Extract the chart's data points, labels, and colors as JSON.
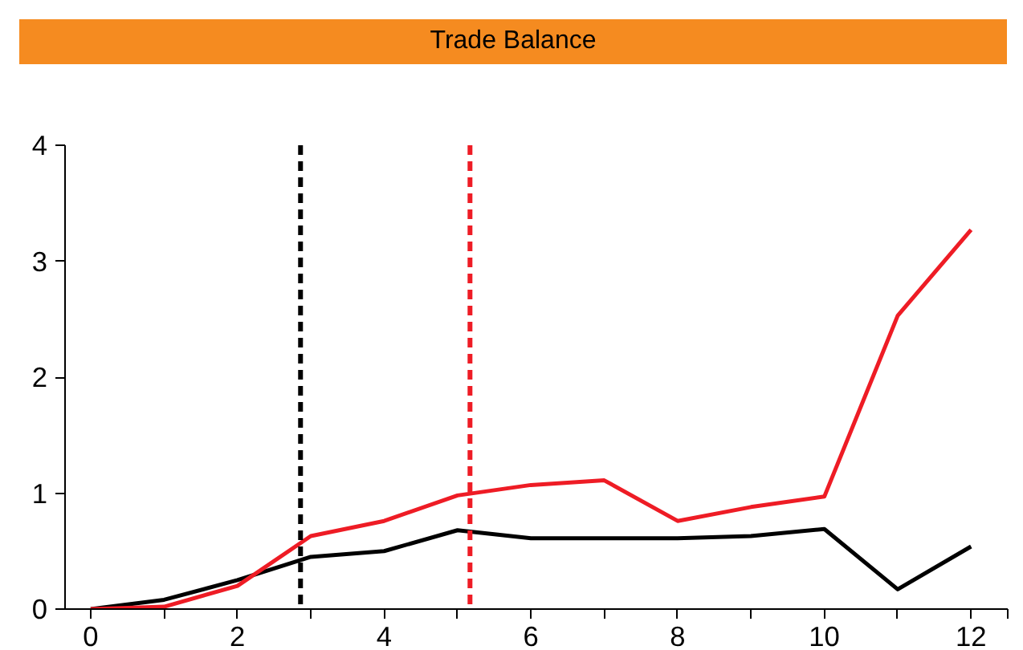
{
  "chart_data": {
    "type": "line",
    "title": "Trade Balance",
    "x": [
      0,
      1,
      2,
      3,
      4,
      5,
      6,
      7,
      8,
      9,
      10,
      11,
      12
    ],
    "series": [
      {
        "color": "#000000",
        "values": [
          0,
          0.08,
          0.25,
          0.45,
          0.5,
          0.68,
          0.61,
          0.61,
          0.61,
          0.63,
          0.69,
          0.17,
          0.54
        ]
      },
      {
        "color": "#ee1c25",
        "values": [
          0,
          0.02,
          0.2,
          0.63,
          0.76,
          0.98,
          1.07,
          1.11,
          0.76,
          0.88,
          0.97,
          2.53,
          3.27
        ]
      }
    ],
    "xlim": [
      -0.35,
      12.5
    ],
    "ylim": [
      0,
      4
    ],
    "xticks": [
      0,
      {
        "value": 1,
        "label": null
      },
      2,
      {
        "value": 3,
        "label": null
      },
      4,
      {
        "value": 5,
        "label": null
      },
      6,
      {
        "value": 7,
        "label": null
      },
      8,
      {
        "value": 9,
        "label": null
      },
      10,
      {
        "value": 11,
        "label": null
      },
      12,
      {
        "value": 12.5,
        "label": null
      }
    ],
    "yticks": [
      0,
      1,
      2,
      3,
      4
    ],
    "ref_lines": [
      {
        "axis": "x",
        "value": 2.86,
        "color": "#000000",
        "line_style": "dashed"
      },
      {
        "axis": "x",
        "value": 5.17,
        "color": "#ee1c25",
        "line_style": "dashed"
      }
    ],
    "grid": false,
    "marker": "none",
    "line_style": "solid"
  }
}
